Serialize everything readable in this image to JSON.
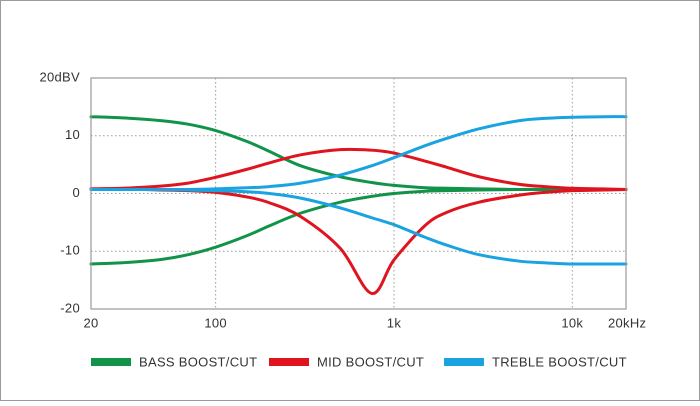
{
  "chart_data": {
    "type": "line",
    "log_x": true,
    "grid": true,
    "x": [
      20,
      30,
      50,
      70,
      100,
      150,
      200,
      300,
      500,
      750,
      1000,
      1500,
      2000,
      3000,
      5000,
      7000,
      10000,
      15000,
      20000
    ],
    "xlim": [
      20,
      20000
    ],
    "xticks": [
      20,
      100,
      {
        "value": 1000,
        "label": "1k"
      },
      {
        "value": 10000,
        "label": "10k"
      },
      {
        "value": 20000,
        "label": "20kHz"
      }
    ],
    "ylim": [
      -20,
      20
    ],
    "yticks": [
      -20,
      -10,
      0,
      10,
      {
        "value": 20,
        "label": "20dBV"
      }
    ],
    "series": [
      {
        "name": "BASS BOOST/CUT",
        "color": "#12934a",
        "curves": [
          [
            13.3,
            13.1,
            12.6,
            12.0,
            10.9,
            9.0,
            7.3,
            4.8,
            2.9,
            1.9,
            1.4,
            1.0,
            0.9,
            0.8,
            0.7,
            0.7,
            0.7,
            0.7,
            0.7
          ],
          [
            -12.2,
            -12.0,
            -11.4,
            -10.6,
            -9.3,
            -7.3,
            -5.6,
            -3.4,
            -1.5,
            -0.5,
            0.0,
            0.4,
            0.5,
            0.6,
            0.7,
            0.7,
            0.7,
            0.7,
            0.7
          ]
        ]
      },
      {
        "name": "MID BOOST/CUT",
        "color": "#e0141e",
        "curves": [
          [
            0.8,
            0.9,
            1.3,
            1.8,
            2.8,
            4.2,
            5.3,
            6.7,
            7.6,
            7.5,
            7.0,
            5.6,
            4.5,
            2.9,
            1.6,
            1.2,
            0.9,
            0.8,
            0.7
          ],
          [
            0.8,
            0.8,
            0.6,
            0.5,
            0.2,
            -0.6,
            -1.6,
            -4.0,
            -9.5,
            -17.3,
            -11.5,
            -5.5,
            -3.2,
            -1.5,
            -0.3,
            0.2,
            0.5,
            0.6,
            0.7
          ]
        ]
      },
      {
        "name": "TREBLE BOOST/CUT",
        "color": "#1aa3e0",
        "curves": [
          [
            0.7,
            0.7,
            0.7,
            0.7,
            0.8,
            1.0,
            1.2,
            1.8,
            3.2,
            4.8,
            6.2,
            8.3,
            9.6,
            11.2,
            12.6,
            13.0,
            13.2,
            13.3,
            13.3
          ],
          [
            0.7,
            0.7,
            0.7,
            0.6,
            0.5,
            0.3,
            0.0,
            -0.8,
            -2.5,
            -4.2,
            -5.4,
            -7.6,
            -9.0,
            -10.6,
            -11.7,
            -12.0,
            -12.2,
            -12.2,
            -12.2
          ]
        ]
      }
    ]
  }
}
